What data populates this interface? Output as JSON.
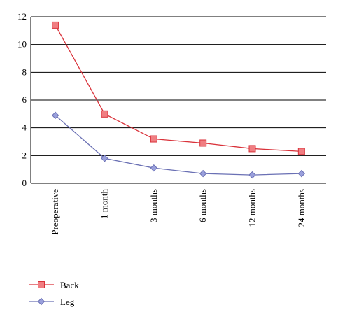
{
  "chart_data": {
    "type": "line",
    "title": "",
    "xlabel": "",
    "ylabel": "",
    "categories": [
      "Preoperative",
      "1 month",
      "3 months",
      "6 months",
      "12 months",
      "24 months"
    ],
    "ylim": [
      0,
      12
    ],
    "yticks": [
      0,
      2,
      4,
      6,
      8,
      10,
      12
    ],
    "grid": "horizontal",
    "legend": "bottom-left",
    "series": [
      {
        "name": "Back",
        "values": [
          11.4,
          5.0,
          3.2,
          2.9,
          2.5,
          2.3
        ],
        "color": "#d9323a",
        "marker_fill": "#f07e82",
        "marker": "square"
      },
      {
        "name": "Leg",
        "values": [
          4.9,
          1.8,
          1.1,
          0.7,
          0.6,
          0.7
        ],
        "color": "#6a70b4",
        "marker_fill": "#9aa0dc",
        "marker": "diamond"
      }
    ]
  }
}
